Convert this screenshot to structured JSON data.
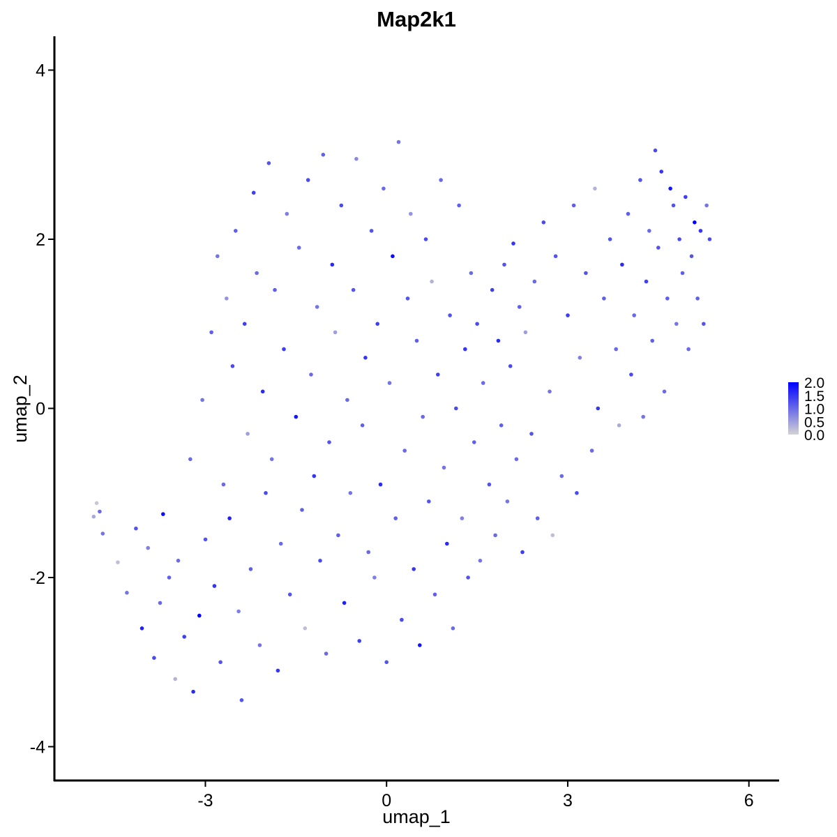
{
  "chart_data": {
    "type": "scatter",
    "title": "Map2k1",
    "xlabel": "umap_1",
    "ylabel": "umap_2",
    "xlim": [
      -5.5,
      6.5
    ],
    "ylim": [
      -4.4,
      4.4
    ],
    "x_ticks": [
      -3,
      0,
      3,
      6
    ],
    "y_ticks": [
      -4,
      -2,
      0,
      2,
      4
    ],
    "x_tick_labels": [
      "-3",
      "0",
      "3",
      "6"
    ],
    "y_tick_labels": [
      "-4",
      "-2",
      "0",
      "2",
      "4"
    ],
    "grid": false,
    "legend": {
      "type": "colorbar",
      "placement": "right",
      "range": [
        0.0,
        2.0
      ],
      "ticks": [
        0.0,
        0.5,
        1.0,
        1.5,
        2.0
      ],
      "tick_labels": [
        "0.0",
        "0.5",
        "1.0",
        "1.5",
        "2.0"
      ]
    },
    "colors": {
      "low": "#d3d3d3",
      "high": "#0000ff"
    },
    "points": [
      {
        "x": -4.85,
        "y": -1.28,
        "v": 0.4
      },
      {
        "x": -4.8,
        "y": -1.12,
        "v": 0.1
      },
      {
        "x": -4.75,
        "y": -1.22,
        "v": 1.0
      },
      {
        "x": -4.7,
        "y": -1.48,
        "v": 0.9
      },
      {
        "x": -4.45,
        "y": -1.82,
        "v": 0.2
      },
      {
        "x": -4.3,
        "y": -2.18,
        "v": 0.9
      },
      {
        "x": -4.15,
        "y": -1.42,
        "v": 1.2
      },
      {
        "x": -4.05,
        "y": -2.6,
        "v": 1.7
      },
      {
        "x": -3.95,
        "y": -1.65,
        "v": 0.8
      },
      {
        "x": -3.85,
        "y": -2.95,
        "v": 1.3
      },
      {
        "x": -3.75,
        "y": -2.3,
        "v": 1.0
      },
      {
        "x": -3.7,
        "y": -1.25,
        "v": 1.9
      },
      {
        "x": -3.6,
        "y": -2.0,
        "v": 1.1
      },
      {
        "x": -3.5,
        "y": -3.2,
        "v": 0.3
      },
      {
        "x": -3.45,
        "y": -1.8,
        "v": 1.0
      },
      {
        "x": -3.35,
        "y": -2.7,
        "v": 1.4
      },
      {
        "x": -3.25,
        "y": -0.6,
        "v": 1.0
      },
      {
        "x": -3.2,
        "y": -3.35,
        "v": 1.6
      },
      {
        "x": -3.1,
        "y": -2.45,
        "v": 2.0
      },
      {
        "x": -3.05,
        "y": 0.1,
        "v": 0.9
      },
      {
        "x": -3.0,
        "y": -1.55,
        "v": 1.2
      },
      {
        "x": -2.9,
        "y": 0.9,
        "v": 1.1
      },
      {
        "x": -2.85,
        "y": -2.1,
        "v": 1.5
      },
      {
        "x": -2.8,
        "y": 1.8,
        "v": 0.9
      },
      {
        "x": -2.75,
        "y": -3.0,
        "v": 1.2
      },
      {
        "x": -2.7,
        "y": -0.9,
        "v": 1.0
      },
      {
        "x": -2.65,
        "y": 1.3,
        "v": 0.6
      },
      {
        "x": -2.6,
        "y": -1.3,
        "v": 1.7
      },
      {
        "x": -2.55,
        "y": 0.5,
        "v": 1.3
      },
      {
        "x": -2.5,
        "y": 2.1,
        "v": 1.1
      },
      {
        "x": -2.45,
        "y": -2.4,
        "v": 0.8
      },
      {
        "x": -2.4,
        "y": -3.45,
        "v": 1.2
      },
      {
        "x": -2.35,
        "y": 1.0,
        "v": 1.4
      },
      {
        "x": -2.3,
        "y": -0.3,
        "v": 0.5
      },
      {
        "x": -2.25,
        "y": -1.9,
        "v": 1.1
      },
      {
        "x": -2.2,
        "y": 2.55,
        "v": 1.4
      },
      {
        "x": -2.15,
        "y": 1.6,
        "v": 1.0
      },
      {
        "x": -2.1,
        "y": -2.8,
        "v": 0.9
      },
      {
        "x": -2.05,
        "y": 0.2,
        "v": 1.6
      },
      {
        "x": -2.0,
        "y": -1.0,
        "v": 1.3
      },
      {
        "x": -1.95,
        "y": 2.9,
        "v": 1.2
      },
      {
        "x": -1.9,
        "y": -0.6,
        "v": 0.9
      },
      {
        "x": -1.85,
        "y": 1.4,
        "v": 1.1
      },
      {
        "x": -1.8,
        "y": -3.1,
        "v": 1.5
      },
      {
        "x": -1.75,
        "y": -1.6,
        "v": 1.0
      },
      {
        "x": -1.7,
        "y": 0.7,
        "v": 1.4
      },
      {
        "x": -1.65,
        "y": 2.3,
        "v": 0.8
      },
      {
        "x": -1.6,
        "y": -2.2,
        "v": 1.2
      },
      {
        "x": -1.5,
        "y": -0.1,
        "v": 1.8
      },
      {
        "x": -1.45,
        "y": 1.9,
        "v": 1.0
      },
      {
        "x": -1.4,
        "y": -1.2,
        "v": 1.1
      },
      {
        "x": -1.35,
        "y": -2.6,
        "v": 0.2
      },
      {
        "x": -1.3,
        "y": 2.7,
        "v": 1.3
      },
      {
        "x": -1.25,
        "y": 0.4,
        "v": 1.0
      },
      {
        "x": -1.2,
        "y": -0.8,
        "v": 1.5
      },
      {
        "x": -1.15,
        "y": 1.2,
        "v": 0.9
      },
      {
        "x": -1.1,
        "y": -1.8,
        "v": 1.3
      },
      {
        "x": -1.05,
        "y": 3.0,
        "v": 1.1
      },
      {
        "x": -1.0,
        "y": -2.9,
        "v": 1.0
      },
      {
        "x": -0.95,
        "y": -0.4,
        "v": 1.2
      },
      {
        "x": -0.9,
        "y": 1.7,
        "v": 1.6
      },
      {
        "x": -0.85,
        "y": 0.9,
        "v": 0.5
      },
      {
        "x": -0.8,
        "y": -1.5,
        "v": 1.1
      },
      {
        "x": -0.75,
        "y": 2.4,
        "v": 1.3
      },
      {
        "x": -0.7,
        "y": -2.3,
        "v": 1.7
      },
      {
        "x": -0.65,
        "y": 0.1,
        "v": 1.0
      },
      {
        "x": -0.6,
        "y": -1.0,
        "v": 0.9
      },
      {
        "x": -0.55,
        "y": 1.4,
        "v": 1.2
      },
      {
        "x": -0.5,
        "y": 2.95,
        "v": 0.7
      },
      {
        "x": -0.45,
        "y": -2.75,
        "v": 1.4
      },
      {
        "x": -0.4,
        "y": -0.2,
        "v": 1.1
      },
      {
        "x": -0.35,
        "y": 0.6,
        "v": 1.5
      },
      {
        "x": -0.3,
        "y": -1.7,
        "v": 1.0
      },
      {
        "x": -0.25,
        "y": 2.1,
        "v": 1.2
      },
      {
        "x": -0.2,
        "y": -2.0,
        "v": 0.8
      },
      {
        "x": -0.15,
        "y": 1.0,
        "v": 1.4
      },
      {
        "x": -0.1,
        "y": -0.9,
        "v": 1.6
      },
      {
        "x": -0.05,
        "y": 2.6,
        "v": 1.0
      },
      {
        "x": 0.0,
        "y": -3.0,
        "v": 1.2
      },
      {
        "x": 0.05,
        "y": 0.3,
        "v": 0.9
      },
      {
        "x": 0.1,
        "y": 1.8,
        "v": 1.9
      },
      {
        "x": 0.15,
        "y": -1.3,
        "v": 1.1
      },
      {
        "x": 0.2,
        "y": 3.15,
        "v": 0.9
      },
      {
        "x": 0.25,
        "y": -2.5,
        "v": 1.3
      },
      {
        "x": 0.3,
        "y": -0.5,
        "v": 1.0
      },
      {
        "x": 0.35,
        "y": 1.3,
        "v": 1.2
      },
      {
        "x": 0.4,
        "y": 2.3,
        "v": 0.6
      },
      {
        "x": 0.45,
        "y": -1.9,
        "v": 1.5
      },
      {
        "x": 0.5,
        "y": 0.8,
        "v": 1.1
      },
      {
        "x": 0.55,
        "y": -2.8,
        "v": 1.8
      },
      {
        "x": 0.6,
        "y": -0.1,
        "v": 1.0
      },
      {
        "x": 0.65,
        "y": 2.0,
        "v": 1.3
      },
      {
        "x": 0.7,
        "y": -1.1,
        "v": 1.2
      },
      {
        "x": 0.75,
        "y": 1.5,
        "v": 0.3
      },
      {
        "x": 0.8,
        "y": -2.2,
        "v": 1.1
      },
      {
        "x": 0.85,
        "y": 0.4,
        "v": 1.4
      },
      {
        "x": 0.9,
        "y": 2.7,
        "v": 1.0
      },
      {
        "x": 0.95,
        "y": -0.7,
        "v": 0.9
      },
      {
        "x": 1.0,
        "y": -1.6,
        "v": 1.6
      },
      {
        "x": 1.05,
        "y": 1.1,
        "v": 1.2
      },
      {
        "x": 1.1,
        "y": -2.6,
        "v": 1.0
      },
      {
        "x": 1.15,
        "y": 0.0,
        "v": 1.3
      },
      {
        "x": 1.2,
        "y": 2.4,
        "v": 1.1
      },
      {
        "x": 1.25,
        "y": -1.3,
        "v": 0.8
      },
      {
        "x": 1.3,
        "y": 0.7,
        "v": 1.5
      },
      {
        "x": 1.35,
        "y": -2.0,
        "v": 1.2
      },
      {
        "x": 1.4,
        "y": 1.6,
        "v": 1.0
      },
      {
        "x": 1.45,
        "y": -0.4,
        "v": 1.1
      },
      {
        "x": 1.5,
        "y": 1.0,
        "v": 1.3
      },
      {
        "x": 1.55,
        "y": -1.8,
        "v": 0.9
      },
      {
        "x": 1.6,
        "y": 0.3,
        "v": 1.0
      },
      {
        "x": 1.7,
        "y": -0.9,
        "v": 1.2
      },
      {
        "x": 1.75,
        "y": 1.4,
        "v": 1.4
      },
      {
        "x": 1.8,
        "y": -1.5,
        "v": 1.0
      },
      {
        "x": 1.85,
        "y": 0.8,
        "v": 1.6
      },
      {
        "x": 1.9,
        "y": -0.2,
        "v": 1.1
      },
      {
        "x": 1.95,
        "y": 1.7,
        "v": 1.2
      },
      {
        "x": 2.0,
        "y": -1.1,
        "v": 0.9
      },
      {
        "x": 2.05,
        "y": 0.5,
        "v": 1.3
      },
      {
        "x": 2.1,
        "y": 1.95,
        "v": 1.5
      },
      {
        "x": 2.15,
        "y": -0.6,
        "v": 1.0
      },
      {
        "x": 2.2,
        "y": 1.2,
        "v": 1.1
      },
      {
        "x": 2.25,
        "y": -1.7,
        "v": 1.4
      },
      {
        "x": 2.3,
        "y": 0.9,
        "v": 0.5
      },
      {
        "x": 2.4,
        "y": -0.3,
        "v": 1.2
      },
      {
        "x": 2.45,
        "y": 1.5,
        "v": 1.0
      },
      {
        "x": 2.5,
        "y": -1.3,
        "v": 1.1
      },
      {
        "x": 2.6,
        "y": 2.2,
        "v": 1.3
      },
      {
        "x": 2.7,
        "y": 0.2,
        "v": 0.9
      },
      {
        "x": 2.75,
        "y": -1.5,
        "v": 0.2
      },
      {
        "x": 2.8,
        "y": 1.8,
        "v": 1.2
      },
      {
        "x": 2.9,
        "y": -0.8,
        "v": 1.0
      },
      {
        "x": 3.0,
        "y": 1.1,
        "v": 1.4
      },
      {
        "x": 3.1,
        "y": 2.4,
        "v": 1.1
      },
      {
        "x": 3.15,
        "y": -1.0,
        "v": 1.3
      },
      {
        "x": 3.2,
        "y": 0.6,
        "v": 0.8
      },
      {
        "x": 3.3,
        "y": 1.6,
        "v": 1.2
      },
      {
        "x": 3.4,
        "y": -0.5,
        "v": 1.0
      },
      {
        "x": 3.45,
        "y": 2.6,
        "v": 0.3
      },
      {
        "x": 3.5,
        "y": 0.0,
        "v": 1.5
      },
      {
        "x": 3.6,
        "y": 1.3,
        "v": 1.1
      },
      {
        "x": 3.7,
        "y": 2.0,
        "v": 1.2
      },
      {
        "x": 3.8,
        "y": 0.7,
        "v": 1.0
      },
      {
        "x": 3.85,
        "y": -0.2,
        "v": 0.4
      },
      {
        "x": 3.9,
        "y": 1.7,
        "v": 1.6
      },
      {
        "x": 4.0,
        "y": 2.3,
        "v": 1.1
      },
      {
        "x": 4.05,
        "y": 0.4,
        "v": 1.3
      },
      {
        "x": 4.1,
        "y": 1.1,
        "v": 1.0
      },
      {
        "x": 4.2,
        "y": 2.7,
        "v": 1.2
      },
      {
        "x": 4.25,
        "y": -0.1,
        "v": 0.9
      },
      {
        "x": 4.3,
        "y": 1.5,
        "v": 1.4
      },
      {
        "x": 4.35,
        "y": 2.1,
        "v": 1.0
      },
      {
        "x": 4.4,
        "y": 0.8,
        "v": 1.1
      },
      {
        "x": 4.45,
        "y": 3.05,
        "v": 1.3
      },
      {
        "x": 4.5,
        "y": 1.9,
        "v": 1.2
      },
      {
        "x": 4.55,
        "y": 2.8,
        "v": 1.5
      },
      {
        "x": 4.6,
        "y": 0.2,
        "v": 1.0
      },
      {
        "x": 4.65,
        "y": 1.3,
        "v": 1.1
      },
      {
        "x": 4.7,
        "y": 2.6,
        "v": 1.8
      },
      {
        "x": 4.75,
        "y": 2.4,
        "v": 1.2
      },
      {
        "x": 4.8,
        "y": 1.0,
        "v": 0.9
      },
      {
        "x": 4.85,
        "y": 2.0,
        "v": 1.3
      },
      {
        "x": 4.9,
        "y": 1.6,
        "v": 1.1
      },
      {
        "x": 4.95,
        "y": 2.5,
        "v": 1.4
      },
      {
        "x": 5.0,
        "y": 0.7,
        "v": 1.0
      },
      {
        "x": 5.05,
        "y": 1.8,
        "v": 1.2
      },
      {
        "x": 5.1,
        "y": 2.2,
        "v": 2.0
      },
      {
        "x": 5.15,
        "y": 1.3,
        "v": 1.1
      },
      {
        "x": 5.2,
        "y": 2.1,
        "v": 1.5
      },
      {
        "x": 5.25,
        "y": 1.0,
        "v": 1.2
      },
      {
        "x": 5.3,
        "y": 2.4,
        "v": 0.9
      },
      {
        "x": 5.35,
        "y": 2.0,
        "v": 1.3
      }
    ]
  }
}
